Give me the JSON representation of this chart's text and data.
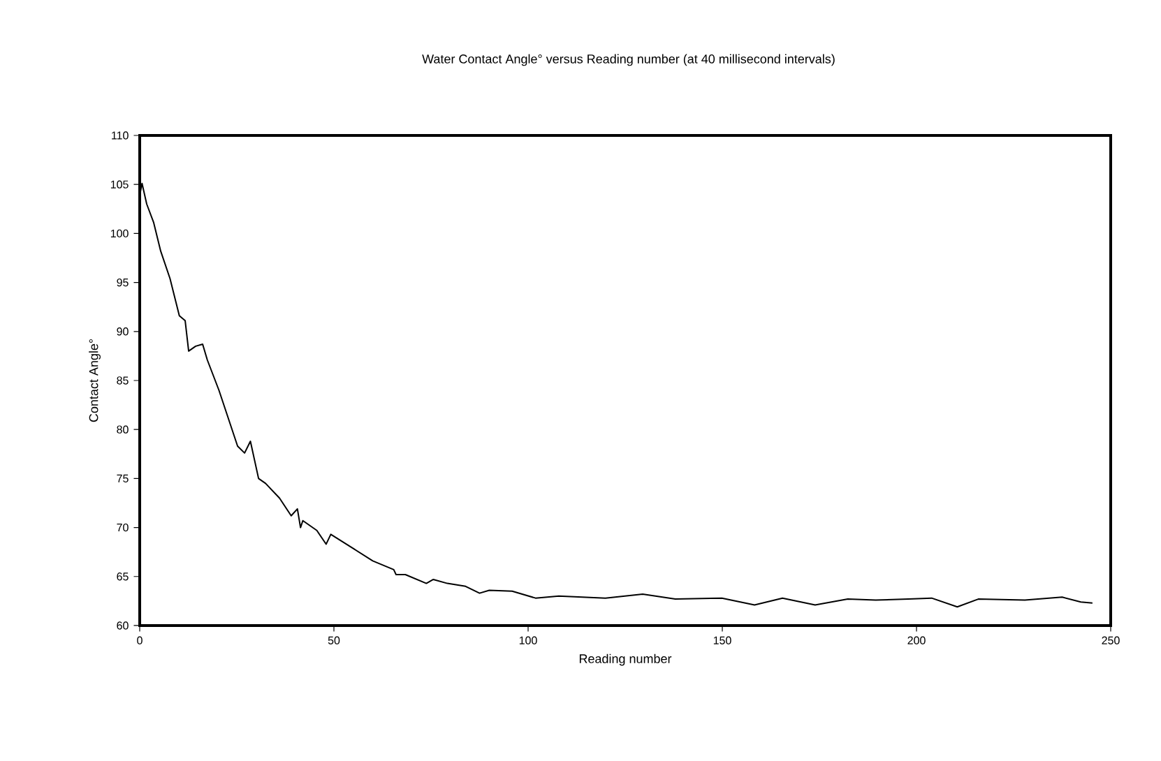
{
  "chart_data": {
    "type": "line",
    "title": "Water Contact Angle° versus Reading number (at 40 millisecond intervals)",
    "xlabel": "Reading number",
    "ylabel": "Contact Angle°",
    "x": [
      0,
      0.6,
      1.8,
      3.6,
      5.4,
      7.8,
      10.2,
      11.7,
      12.6,
      14.4,
      16.2,
      17.4,
      20.4,
      25.2,
      27,
      28.5,
      30.6,
      32.4,
      36,
      39,
      40.6,
      41.4,
      42,
      45.6,
      48,
      49.2,
      55.2,
      60,
      65.4,
      66,
      68.4,
      73.8,
      75.6,
      79.2,
      83.9,
      87.5,
      90,
      95.9,
      101.9,
      107.9,
      119.9,
      129.5,
      137.9,
      149.9,
      158.3,
      165.5,
      173.9,
      182.3,
      189.5,
      197.9,
      203.9,
      210.5,
      215.9,
      227.9,
      237.5,
      242.3,
      245.3
    ],
    "series": [
      {
        "color": "#000000",
        "values": [
          103.9,
          105.1,
          103,
          101.1,
          98.2,
          95.4,
          91.6,
          91.1,
          88,
          88.5,
          88.7,
          87.1,
          84,
          78.3,
          77.6,
          78.8,
          75,
          74.5,
          73,
          71.2,
          71.9,
          70,
          70.7,
          69.7,
          68.3,
          69.3,
          67.8,
          66.6,
          65.7,
          65.2,
          65.2,
          64.3,
          64.7,
          64.3,
          64,
          63.3,
          63.6,
          63.5,
          62.8,
          63,
          62.8,
          63.2,
          62.7,
          62.8,
          62.1,
          62.8,
          62.1,
          62.7,
          62.6,
          62.7,
          62.8,
          61.9,
          62.7,
          62.6,
          62.9,
          62.4,
          62.3
        ]
      }
    ],
    "xlim": [
      0,
      250
    ],
    "xticks": [
      0,
      50,
      100,
      150,
      200,
      250
    ],
    "ylim": [
      60,
      110
    ],
    "yticks": [
      60,
      65,
      70,
      75,
      80,
      85,
      90,
      95,
      100,
      105,
      110
    ],
    "grid": false,
    "line_style": "solid",
    "marker": "none"
  }
}
